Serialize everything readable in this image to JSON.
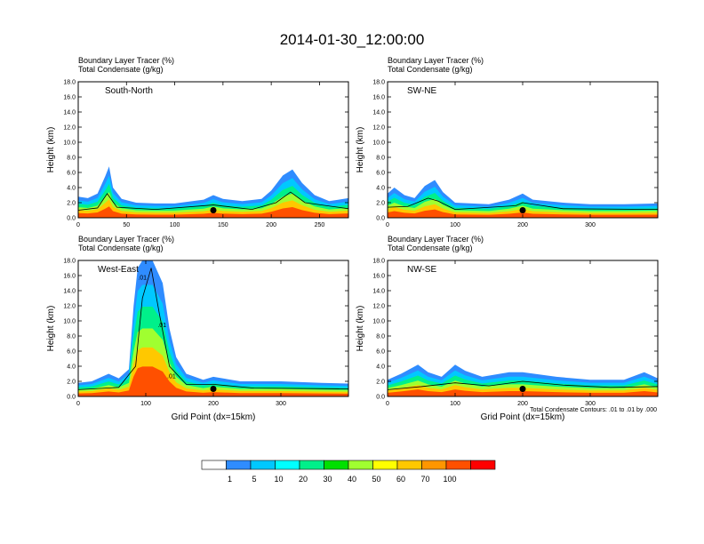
{
  "figure": {
    "title": "2014-01-30_12:00:00",
    "footnote": "Total Condensate Contours: .01 to .01 by .000",
    "field_label": "Boundary Layer Tracer",
    "field_units": "(%)",
    "contour_label": "Total Condensate",
    "contour_units": "(g/kg)"
  },
  "colorbar": {
    "labels": [
      "1",
      "5",
      "10",
      "20",
      "30",
      "40",
      "50",
      "60",
      "70",
      "100"
    ],
    "colors": [
      "#ffffff",
      "#2f8cff",
      "#00c8ff",
      "#00ffff",
      "#00f08a",
      "#00e000",
      "#a0ff30",
      "#ffff00",
      "#ffc800",
      "#ff9600",
      "#ff5000",
      "#ff0000"
    ]
  },
  "chart_data": [
    {
      "type": "heatmap",
      "panel": "South-North",
      "field_label": "Boundary Layer Tracer",
      "field_units": "(%)",
      "contour_label": "Total Condensate",
      "contour_units": "(g/kg)",
      "ylabel": "Height (km)",
      "xlabel": "",
      "xlim": [
        0,
        280
      ],
      "ylim": [
        0,
        18
      ],
      "x_ticks": [
        0,
        50,
        100,
        150,
        200,
        250
      ],
      "y_ticks": [
        "0.0",
        "2.0",
        "4.0",
        "6.0",
        "8.0",
        "10.0",
        "12.0",
        "14.0",
        "16.0",
        "18.0"
      ],
      "marker": [
        140,
        1.0
      ],
      "tracer_top": [
        [
          0,
          2.8
        ],
        [
          10,
          2.6
        ],
        [
          20,
          3.2
        ],
        [
          28,
          5.5
        ],
        [
          32,
          6.8
        ],
        [
          36,
          4.0
        ],
        [
          45,
          2.5
        ],
        [
          60,
          2.0
        ],
        [
          80,
          1.9
        ],
        [
          100,
          1.9
        ],
        [
          130,
          2.4
        ],
        [
          140,
          3.0
        ],
        [
          150,
          2.5
        ],
        [
          170,
          2.2
        ],
        [
          190,
          2.5
        ],
        [
          200,
          3.6
        ],
        [
          212,
          5.6
        ],
        [
          222,
          6.4
        ],
        [
          232,
          4.6
        ],
        [
          245,
          3.0
        ],
        [
          260,
          2.2
        ],
        [
          280,
          2.6
        ]
      ],
      "core_top": [
        [
          0,
          1.0
        ],
        [
          20,
          1.3
        ],
        [
          30,
          3.2
        ],
        [
          40,
          1.4
        ],
        [
          80,
          1.1
        ],
        [
          140,
          1.7
        ],
        [
          180,
          1.1
        ],
        [
          205,
          2.0
        ],
        [
          220,
          3.4
        ],
        [
          235,
          2.0
        ],
        [
          280,
          1.2
        ]
      ]
    },
    {
      "type": "heatmap",
      "panel": "SW-NE",
      "field_label": "Boundary Layer Tracer",
      "field_units": "(%)",
      "contour_label": "Total Condensate",
      "contour_units": "(g/kg)",
      "ylabel": "Height (km)",
      "xlabel": "",
      "xlim": [
        0,
        400
      ],
      "ylim": [
        0,
        18
      ],
      "x_ticks": [
        0,
        100,
        200,
        300
      ],
      "y_ticks": [
        "0.0",
        "2.0",
        "4.0",
        "6.0",
        "8.0",
        "10.0",
        "12.0",
        "14.0",
        "16.0",
        "18.0"
      ],
      "marker": [
        200,
        1.0
      ],
      "tracer_top": [
        [
          0,
          3.2
        ],
        [
          10,
          4.0
        ],
        [
          25,
          3.0
        ],
        [
          40,
          2.6
        ],
        [
          55,
          4.2
        ],
        [
          70,
          5.0
        ],
        [
          82,
          3.4
        ],
        [
          100,
          2.0
        ],
        [
          150,
          1.8
        ],
        [
          180,
          2.4
        ],
        [
          200,
          3.2
        ],
        [
          215,
          2.4
        ],
        [
          260,
          2.0
        ],
        [
          300,
          1.8
        ],
        [
          350,
          1.8
        ],
        [
          400,
          1.9
        ]
      ],
      "core_top": [
        [
          0,
          1.4
        ],
        [
          30,
          1.5
        ],
        [
          60,
          2.6
        ],
        [
          75,
          2.2
        ],
        [
          100,
          1.1
        ],
        [
          190,
          1.6
        ],
        [
          200,
          2.0
        ],
        [
          260,
          1.2
        ],
        [
          400,
          1.1
        ]
      ]
    },
    {
      "type": "heatmap",
      "panel": "West-East",
      "field_label": "Boundary Layer Tracer",
      "field_units": "(%)",
      "contour_label": "Total Condensate",
      "contour_units": "(g/kg)",
      "ylabel": "Height (km)",
      "xlabel": "Grid Point (dx=15km)",
      "xlim": [
        0,
        400
      ],
      "ylim": [
        0,
        18
      ],
      "x_ticks": [
        0,
        100,
        200,
        300
      ],
      "y_ticks": [
        "0.0",
        "2.0",
        "4.0",
        "6.0",
        "8.0",
        "10.0",
        "12.0",
        "14.0",
        "16.0",
        "18.0"
      ],
      "marker": [
        200,
        1.0
      ],
      "tracer_top": [
        [
          0,
          1.8
        ],
        [
          20,
          2.0
        ],
        [
          45,
          3.0
        ],
        [
          60,
          2.4
        ],
        [
          75,
          3.6
        ],
        [
          82,
          12.0
        ],
        [
          88,
          17.0
        ],
        [
          95,
          18.0
        ],
        [
          110,
          18.0
        ],
        [
          125,
          15.0
        ],
        [
          135,
          9.0
        ],
        [
          145,
          5.2
        ],
        [
          160,
          3.0
        ],
        [
          185,
          2.2
        ],
        [
          200,
          2.6
        ],
        [
          240,
          2.0
        ],
        [
          300,
          2.0
        ],
        [
          360,
          1.8
        ],
        [
          400,
          1.7
        ]
      ],
      "core_top": [
        [
          0,
          0.9
        ],
        [
          60,
          1.2
        ],
        [
          85,
          4.0
        ],
        [
          95,
          13.0
        ],
        [
          108,
          17.0
        ],
        [
          120,
          11.0
        ],
        [
          135,
          4.0
        ],
        [
          160,
          1.6
        ],
        [
          200,
          1.6
        ],
        [
          260,
          1.1
        ],
        [
          400,
          1.0
        ]
      ],
      "contour_labels": [
        [
          95,
          15.5,
          ".01"
        ],
        [
          124,
          9.2,
          ".01"
        ],
        [
          138,
          2.4,
          ".01"
        ]
      ]
    },
    {
      "type": "heatmap",
      "panel": "NW-SE",
      "field_label": "Boundary Layer Tracer",
      "field_units": "(%)",
      "contour_label": "Total Condensate",
      "contour_units": "(g/kg)",
      "ylabel": "Height (km)",
      "xlabel": "Grid Point (dx=15km)",
      "xlim": [
        0,
        400
      ],
      "ylim": [
        0,
        18
      ],
      "x_ticks": [
        0,
        100,
        200,
        300
      ],
      "y_ticks": [
        "0.0",
        "2.0",
        "4.0",
        "6.0",
        "8.0",
        "10.0",
        "12.0",
        "14.0",
        "16.0",
        "18.0"
      ],
      "marker": [
        200,
        1.0
      ],
      "tracer_top": [
        [
          0,
          2.2
        ],
        [
          20,
          3.0
        ],
        [
          45,
          4.2
        ],
        [
          60,
          3.2
        ],
        [
          80,
          2.6
        ],
        [
          100,
          4.2
        ],
        [
          115,
          3.4
        ],
        [
          140,
          2.6
        ],
        [
          180,
          3.2
        ],
        [
          200,
          3.2
        ],
        [
          250,
          2.6
        ],
        [
          300,
          2.2
        ],
        [
          350,
          2.2
        ],
        [
          380,
          3.2
        ],
        [
          400,
          2.4
        ]
      ],
      "core_top": [
        [
          0,
          0.9
        ],
        [
          50,
          1.3
        ],
        [
          100,
          1.8
        ],
        [
          150,
          1.4
        ],
        [
          200,
          2.0
        ],
        [
          260,
          1.5
        ],
        [
          330,
          1.2
        ],
        [
          400,
          1.3
        ]
      ]
    }
  ]
}
